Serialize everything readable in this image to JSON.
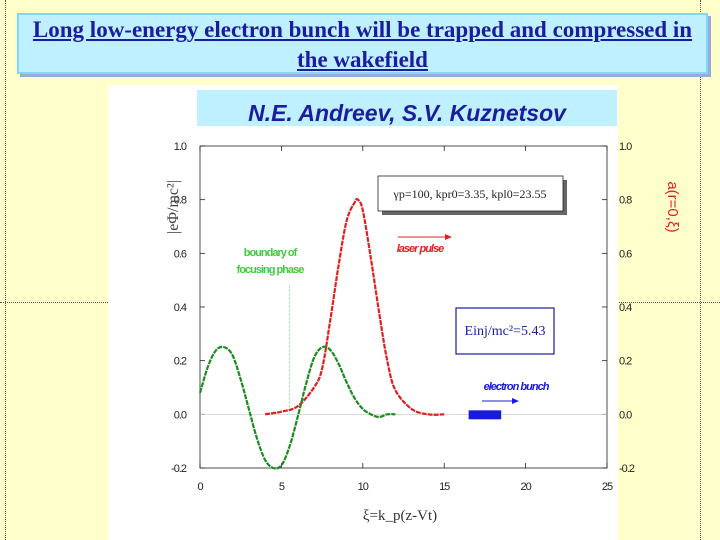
{
  "slide": {
    "title": "Long low-energy electron bunch will be trapped and compressed in the wakefield",
    "authors": "N.E. Andreev,  S.V. Kuznetsov"
  },
  "chart_data": {
    "type": "line",
    "xlabel": "ξ=k_p(z-Vt)",
    "ylabel_left": "|eΦ/mc²|",
    "ylabel_right": "a(r=0,ξ)",
    "xlim": [
      0,
      25
    ],
    "ylim": [
      -0.2,
      1.0
    ],
    "x_ticks": [
      "0",
      "5",
      "10",
      "15",
      "20",
      "25"
    ],
    "y_ticks": [
      "-0.2",
      "0.0",
      "0.2",
      "0.4",
      "0.6",
      "0.8",
      "1.0"
    ],
    "grid": false,
    "series": [
      {
        "name": "laser pulse",
        "color": "#e02020",
        "x": [
          4.0,
          5.0,
          6.0,
          7.0,
          7.5,
          8.0,
          8.5,
          9.0,
          9.5,
          9.7,
          10.0,
          10.5,
          11.0,
          11.5,
          12.0,
          13.0,
          14.0,
          15.0
        ],
        "y": [
          0.0,
          0.01,
          0.03,
          0.1,
          0.17,
          0.35,
          0.55,
          0.72,
          0.79,
          0.8,
          0.76,
          0.58,
          0.38,
          0.2,
          0.09,
          0.02,
          0.0,
          0.0
        ]
      },
      {
        "name": "|eΦ/mc²|",
        "color": "#1f8a1f",
        "x": [
          0,
          0.5,
          1.0,
          1.5,
          2.0,
          2.5,
          3.0,
          3.5,
          4.0,
          4.5,
          5.0,
          5.5,
          6.0,
          6.5,
          7.0,
          7.5,
          8.0,
          8.5,
          9.0,
          9.5,
          10.0,
          10.5,
          11.0,
          11.5,
          12.0
        ],
        "y": [
          0.08,
          0.18,
          0.24,
          0.25,
          0.22,
          0.13,
          0.02,
          -0.09,
          -0.17,
          -0.2,
          -0.19,
          -0.12,
          -0.01,
          0.11,
          0.21,
          0.25,
          0.24,
          0.19,
          0.12,
          0.06,
          0.02,
          0.0,
          -0.01,
          0.0,
          0.0
        ]
      }
    ],
    "focusing_boundary_x": 5.5,
    "annotations": {
      "params_box": "γp=100, kpr0=3.35, kpl0=23.55",
      "laser_label": "laser pulse",
      "boundary_label": "boundary of focusing phase",
      "energy_box": "Einj/mc²=5.43",
      "bunch_label": "electron bunch",
      "bunch_x": [
        16.5,
        18.5
      ]
    },
    "colors": {
      "laser": "#e02020",
      "wake": "#1f8a1f",
      "bunch": "#1a1adf",
      "text_blue": "#1c1c9e"
    }
  }
}
